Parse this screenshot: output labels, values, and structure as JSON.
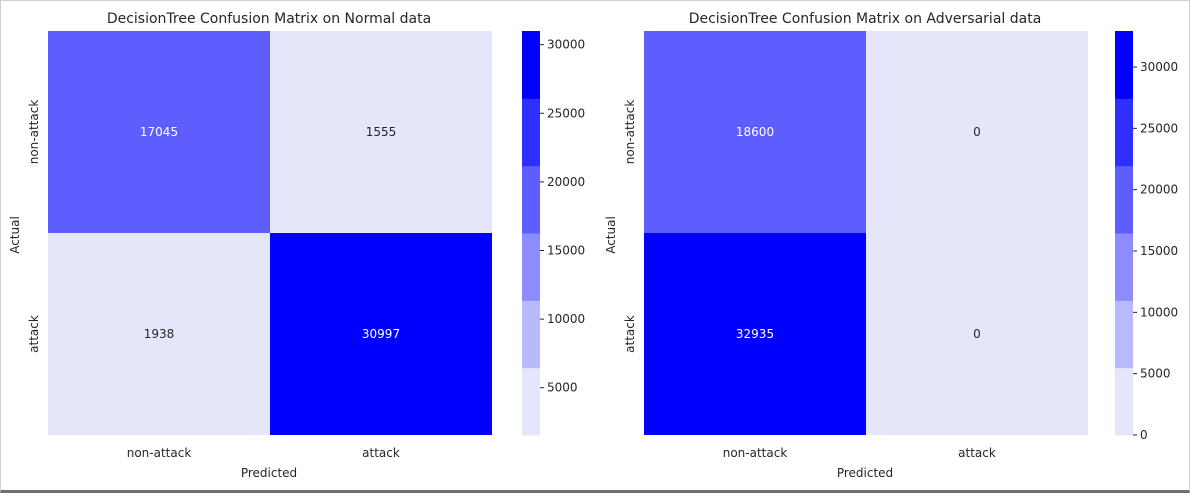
{
  "chart_data": [
    {
      "type": "heatmap",
      "title": "DecisionTree Confusion Matrix on Normal data",
      "xlabel": "Predicted",
      "ylabel": "Actual",
      "x_categories": [
        "non-attack",
        "attack"
      ],
      "y_categories": [
        "non-attack",
        "attack"
      ],
      "matrix": [
        [
          17045,
          1555
        ],
        [
          1938,
          30997
        ]
      ],
      "colorbar": {
        "ticks": [
          5000,
          10000,
          15000,
          20000,
          25000,
          30000
        ],
        "range": [
          1555,
          30997
        ],
        "levels": 6
      },
      "colormap": [
        "#e6e6fa",
        "#b9b9ff",
        "#8c8cff",
        "#5e5eff",
        "#2f2fff",
        "#0000ff"
      ],
      "grid": false
    },
    {
      "type": "heatmap",
      "title": "DecisionTree Confusion Matrix on Adversarial data",
      "xlabel": "Predicted",
      "ylabel": "Actual",
      "x_categories": [
        "non-attack",
        "attack"
      ],
      "y_categories": [
        "non-attack",
        "attack"
      ],
      "matrix": [
        [
          18600,
          0
        ],
        [
          32935,
          0
        ]
      ],
      "colorbar": {
        "ticks": [
          0,
          5000,
          10000,
          15000,
          20000,
          25000,
          30000
        ],
        "range": [
          0,
          32935
        ],
        "levels": 6
      },
      "colormap": [
        "#e6e6fa",
        "#b9b9ff",
        "#8c8cff",
        "#5e5eff",
        "#2f2fff",
        "#0000ff"
      ],
      "grid": false
    }
  ],
  "annotation_colors": {
    "on_light": "#262626",
    "on_dark": "#ffffff"
  }
}
